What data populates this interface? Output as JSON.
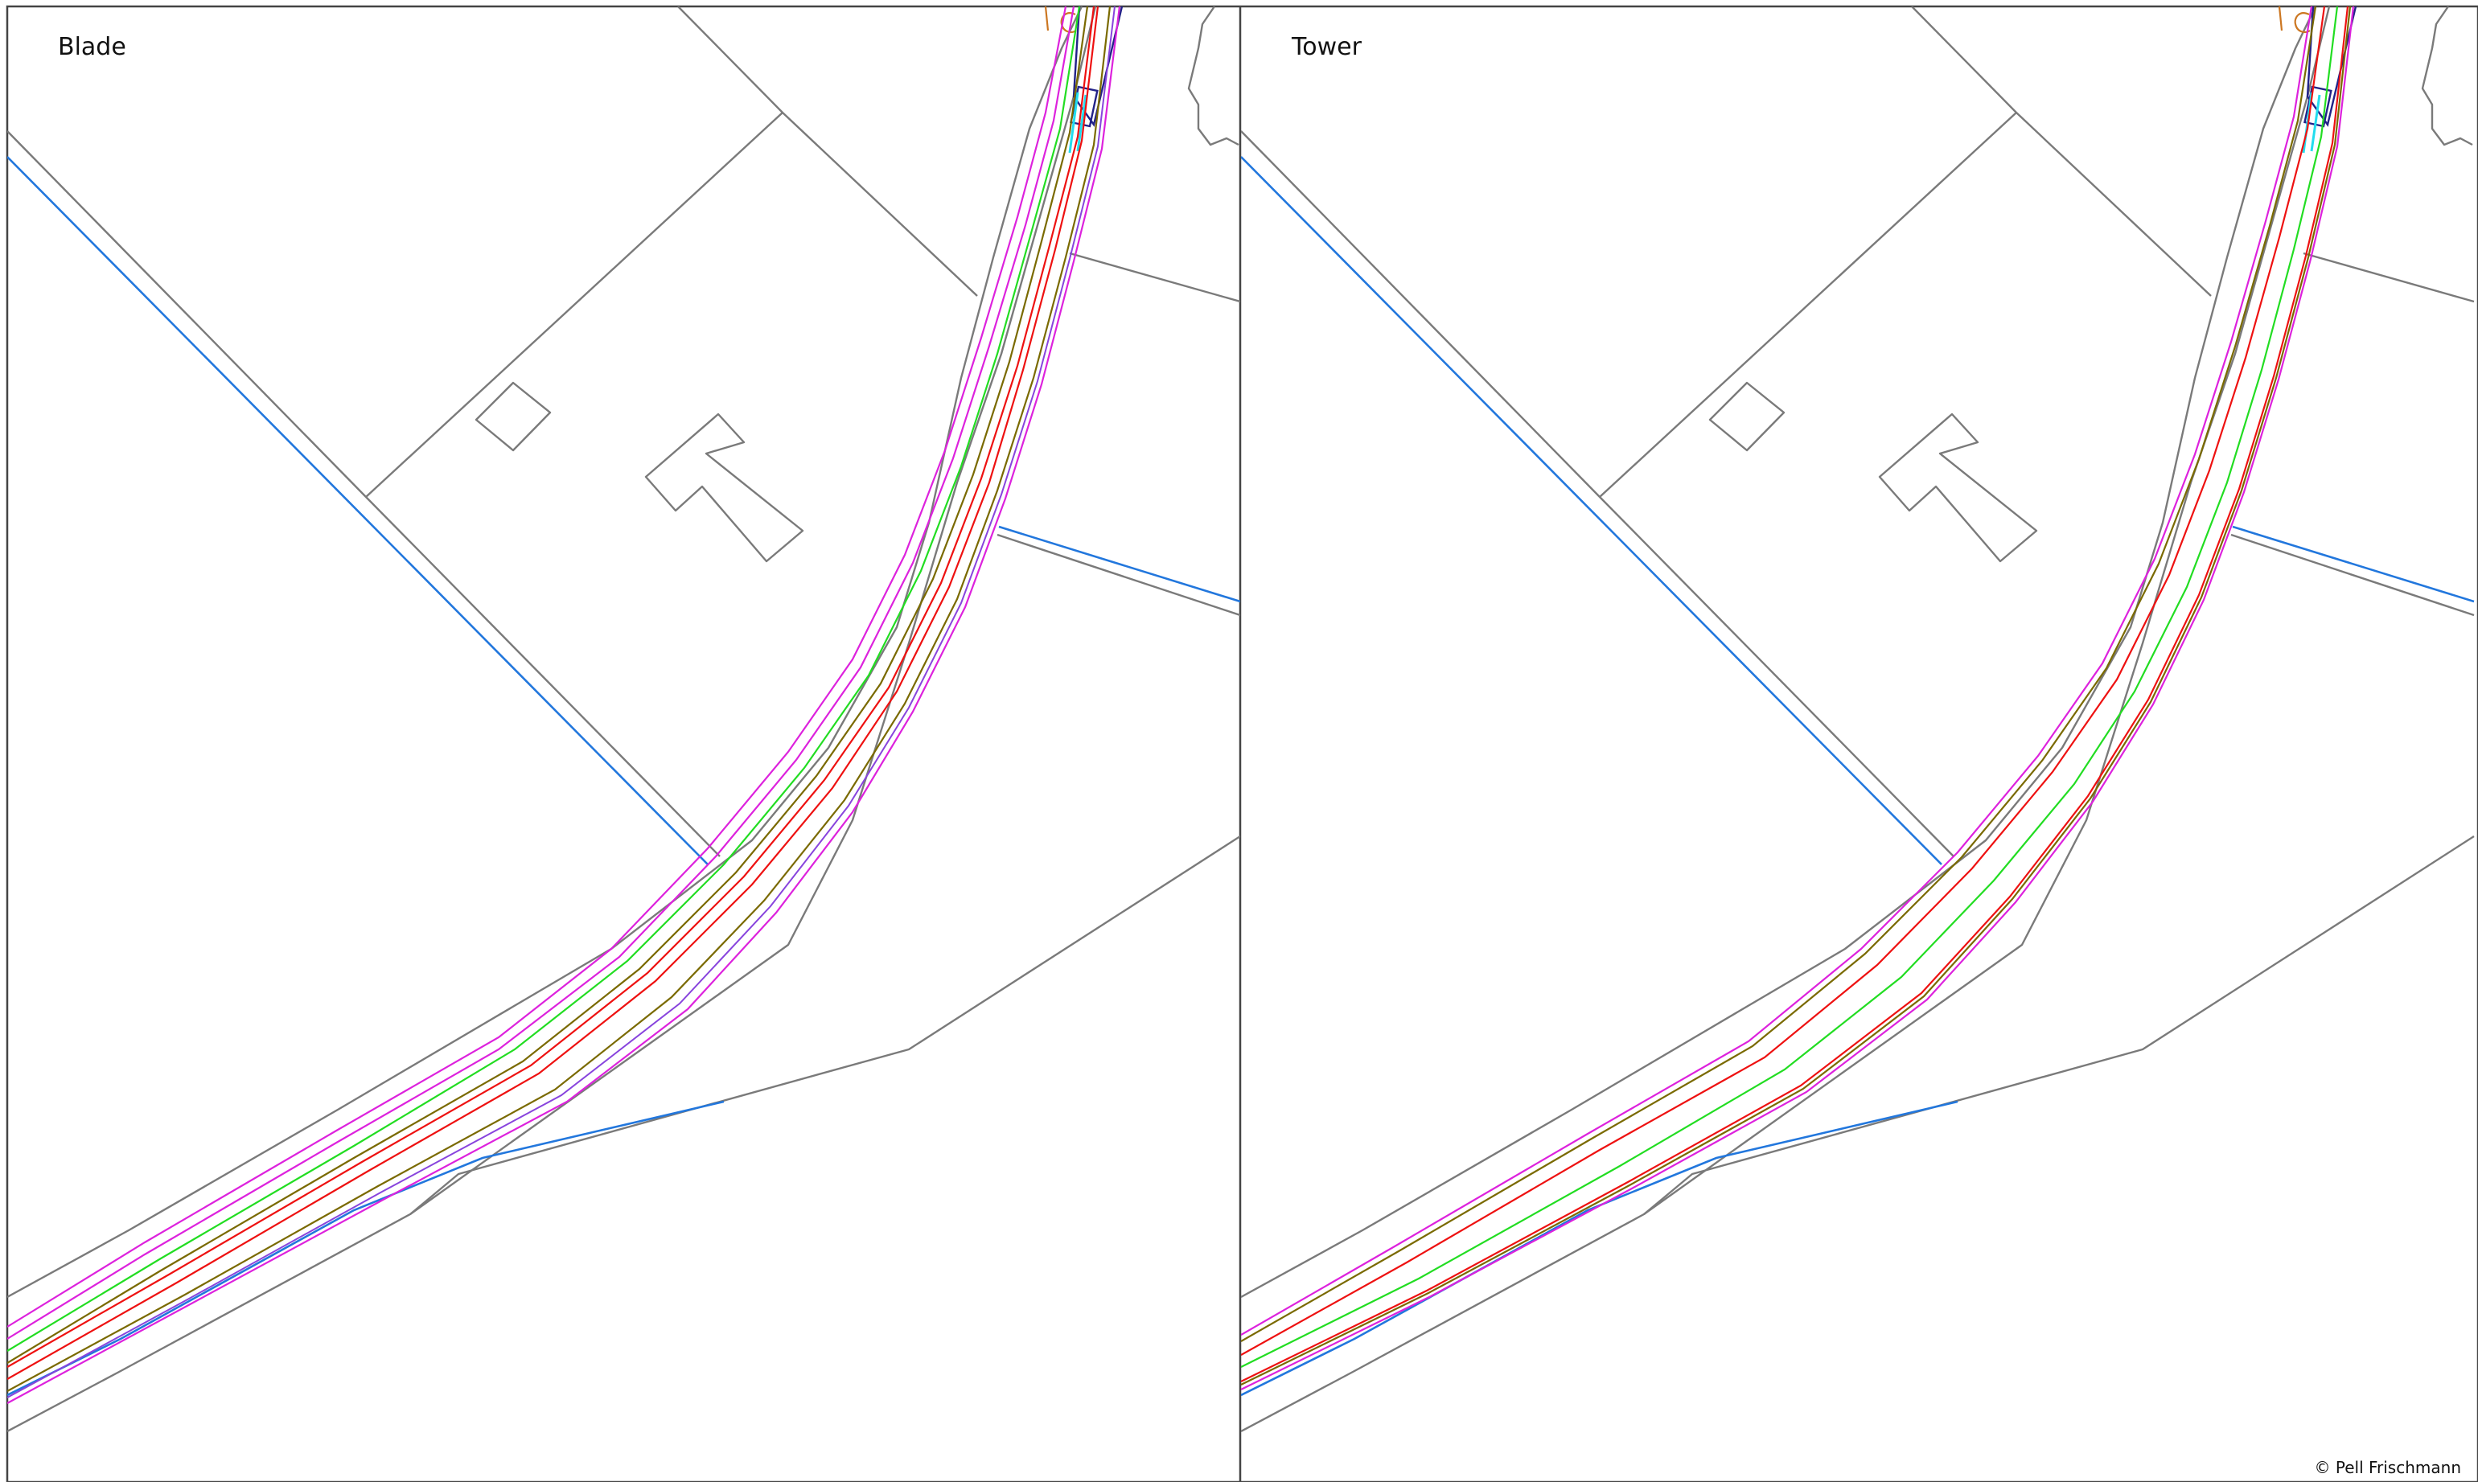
{
  "panels": [
    {
      "id": "blade",
      "title": "Blade"
    },
    {
      "id": "tower",
      "title": "Tower"
    }
  ],
  "copyright": "© Pell Frischmann",
  "colors": {
    "fence": "#7a7a7a",
    "water": "#2277dd",
    "swept_path_outer": "#dd22dd",
    "swept_path_centre": "#22dd22",
    "vehicle_track": "#ee1111",
    "vehicle_track_alt": "#7a6a00",
    "label": "#cc7722"
  },
  "icons": [
    "building-outline",
    "drainage-marking"
  ]
}
